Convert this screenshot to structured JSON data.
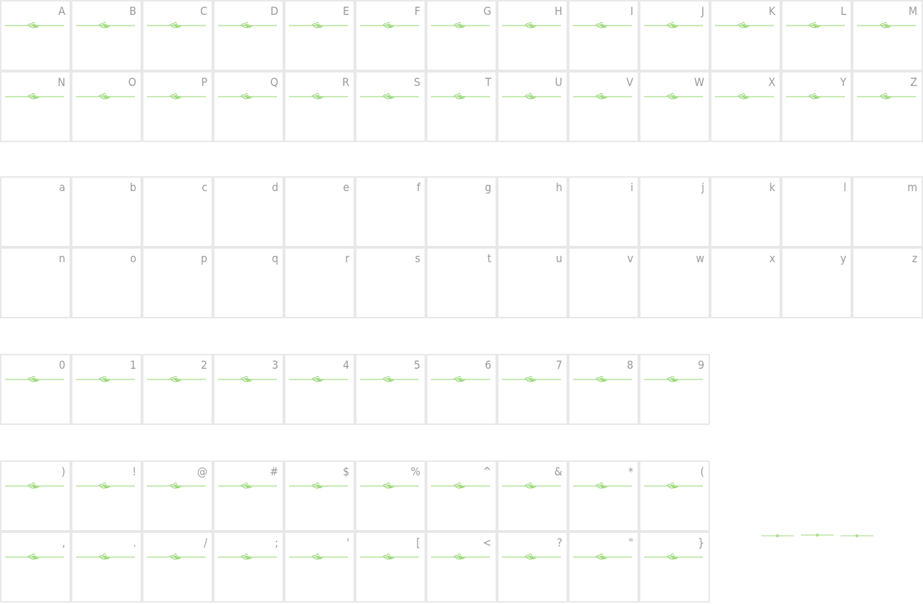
{
  "sections": [
    {
      "rows": [
        [
          "A",
          "B",
          "C",
          "D",
          "E",
          "F",
          "G",
          "H",
          "I",
          "J",
          "K",
          "L",
          "M"
        ],
        [
          "N",
          "O",
          "P",
          "Q",
          "R",
          "S",
          "T",
          "U",
          "V",
          "W",
          "X",
          "Y",
          "Z"
        ]
      ]
    },
    {
      "rows": [
        [
          "a",
          "b",
          "c",
          "d",
          "e",
          "f",
          "g",
          "h",
          "i",
          "j",
          "k",
          "l",
          "m"
        ],
        [
          "n",
          "o",
          "p",
          "q",
          "r",
          "s",
          "t",
          "u",
          "v",
          "w",
          "x",
          "y",
          "z"
        ]
      ]
    },
    {
      "rows": [
        [
          "0",
          "1",
          "2",
          "3",
          "4",
          "5",
          "6",
          "7",
          "8",
          "9"
        ]
      ]
    },
    {
      "rows": [
        [
          ")",
          "!",
          "@",
          "#",
          "$",
          "%",
          "^",
          "&",
          "*",
          "("
        ],
        [
          ",",
          ".",
          "/",
          ";",
          "'",
          "[",
          "<",
          "?",
          "\"",
          "}"
        ]
      ]
    }
  ]
}
